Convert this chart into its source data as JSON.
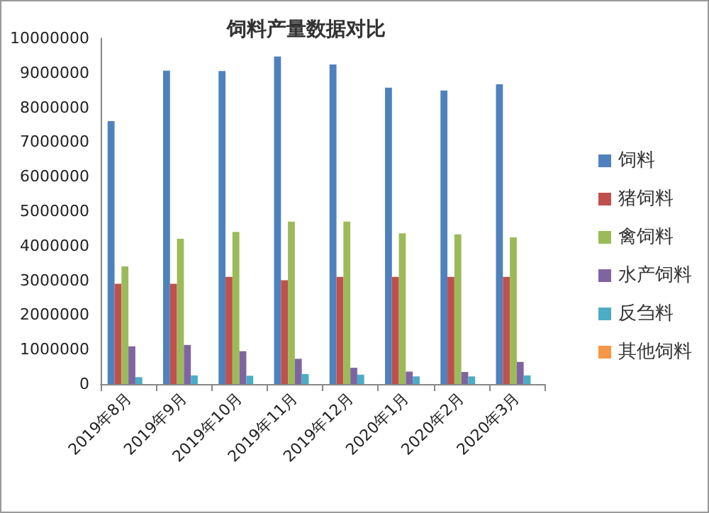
{
  "chart_data": {
    "type": "bar",
    "title": "饲料产量数据对比",
    "categories": [
      "2019年8月",
      "2019年9月",
      "2019年10月",
      "2019年11月",
      "2019年12月",
      "2020年1月",
      "2020年2月",
      "2020年3月"
    ],
    "series": [
      {
        "name": "饲料",
        "color": "#4f81bd",
        "values": [
          7600000,
          9060000,
          9050000,
          9470000,
          9240000,
          8570000,
          8490000,
          8670000
        ]
      },
      {
        "name": "猪饲料",
        "color": "#c0504d",
        "values": [
          2900000,
          2900000,
          3100000,
          3000000,
          3100000,
          3100000,
          3100000,
          3100000
        ]
      },
      {
        "name": "禽饲料",
        "color": "#9bbb59",
        "values": [
          3400000,
          4200000,
          4400000,
          4700000,
          4700000,
          4360000,
          4330000,
          4240000
        ]
      },
      {
        "name": "水产饲料",
        "color": "#8064a2",
        "values": [
          1090000,
          1130000,
          950000,
          730000,
          470000,
          360000,
          350000,
          640000
        ]
      },
      {
        "name": "反刍料",
        "color": "#4bacc6",
        "values": [
          200000,
          250000,
          240000,
          290000,
          270000,
          220000,
          220000,
          250000
        ]
      },
      {
        "name": "其他饲料",
        "color": "#f79646",
        "values": [
          null,
          null,
          null,
          null,
          null,
          null,
          null,
          null
        ]
      }
    ],
    "ylim": [
      0,
      10000000
    ],
    "yticks": [
      0,
      1000000,
      2000000,
      3000000,
      4000000,
      5000000,
      6000000,
      7000000,
      8000000,
      9000000,
      10000000
    ],
    "grid": false,
    "legend": "right"
  }
}
